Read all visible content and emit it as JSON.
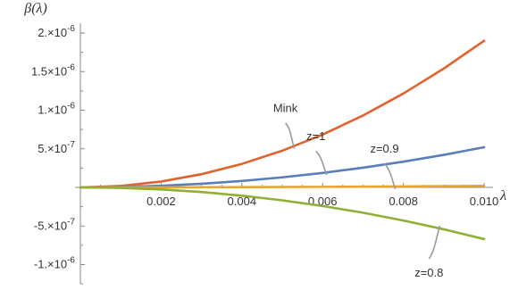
{
  "chart_data": {
    "type": "line",
    "title": "",
    "xlabel": "λ",
    "ylabel": "β(λ)",
    "xlim": [
      0,
      0.01
    ],
    "ylim": [
      -1.2e-06,
      2.2e-06
    ],
    "grid": false,
    "x_ticks": [
      {
        "value": 0.002,
        "label": "0.002"
      },
      {
        "value": 0.004,
        "label": "0.004"
      },
      {
        "value": 0.006,
        "label": "0.006"
      },
      {
        "value": 0.008,
        "label": "0.008"
      },
      {
        "value": 0.01,
        "label": "0.010"
      }
    ],
    "y_ticks": [
      {
        "value": 2e-06,
        "mantissa": "2.",
        "exponent": "-6"
      },
      {
        "value": 1.5e-06,
        "mantissa": "1.5",
        "exponent": "-6"
      },
      {
        "value": 1e-06,
        "mantissa": "1.",
        "exponent": "-6"
      },
      {
        "value": 5e-07,
        "mantissa": "5.",
        "exponent": "-7"
      },
      {
        "value": -5e-07,
        "mantissa": "-5.",
        "exponent": "-7"
      },
      {
        "value": -1e-06,
        "mantissa": "-1.",
        "exponent": "-6"
      }
    ],
    "x": [
      0,
      0.001,
      0.002,
      0.003,
      0.004,
      0.005,
      0.006,
      0.007,
      0.008,
      0.009,
      0.01
    ],
    "series": [
      {
        "name": "Mink",
        "color": "#e2622f",
        "values": [
          0,
          1.9e-08,
          7.6e-08,
          1.71e-07,
          3.04e-07,
          4.75e-07,
          6.84e-07,
          9.31e-07,
          1.216e-06,
          1.539e-06,
          1.9e-06
        ],
        "label_at_x": 0.0053
      },
      {
        "name": "z=1",
        "color": "#5a7fb8",
        "values": [
          0,
          5.2e-09,
          2.08e-08,
          4.68e-08,
          8.32e-08,
          1.3e-07,
          1.872e-07,
          2.548e-07,
          3.328e-07,
          4.212e-07,
          5.2e-07
        ],
        "label_at_x": 0.0061
      },
      {
        "name": "z=0.9",
        "color": "#e8a630",
        "values": [
          0,
          2e-10,
          8e-10,
          1.8e-09,
          3.2e-09,
          5e-09,
          7.2e-09,
          9.8e-09,
          1.28e-08,
          1.62e-08,
          2e-08
        ],
        "label_at_x": 0.0078
      },
      {
        "name": "z=0.8",
        "color": "#8fb032",
        "values": [
          0,
          -6.7e-09,
          -2.68e-08,
          -6.03e-08,
          -1.072e-07,
          -1.675e-07,
          -2.412e-07,
          -3.283e-07,
          -4.288e-07,
          -5.427e-07,
          -6.7e-07
        ],
        "label_at_x": 0.0089
      }
    ]
  }
}
